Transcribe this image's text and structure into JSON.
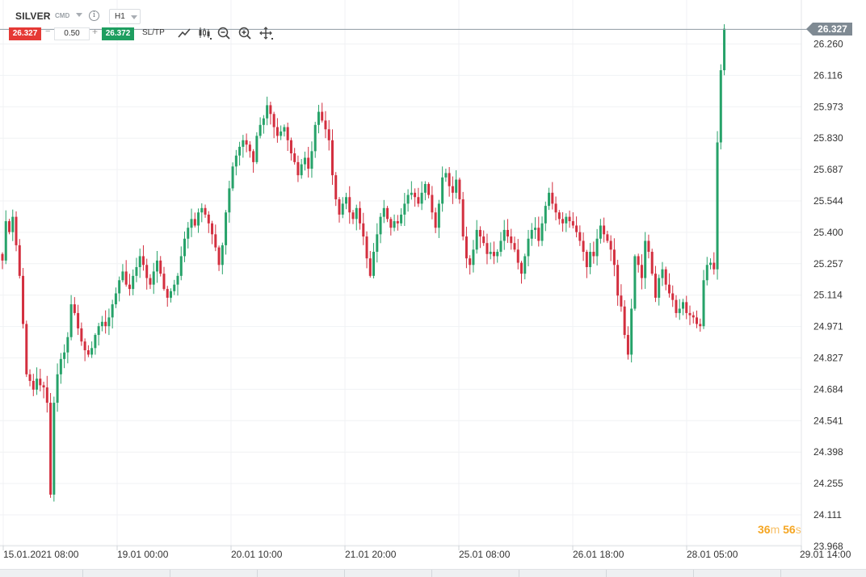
{
  "header": {
    "symbol": "SILVER",
    "market": "CMD",
    "timeframe": "H1"
  },
  "trade_bar": {
    "bid": "26.327",
    "volume": "0.50",
    "ask": "26.372",
    "sltp_label": "SL/TP",
    "minus": "−",
    "plus": "+"
  },
  "toolbar_icons": [
    "trend-line-icon",
    "candlestick-type-icon",
    "zoom-out-icon",
    "zoom-in-icon",
    "move-crosshair-icon"
  ],
  "current_price_label": "26.327",
  "countdown": {
    "minutes": "36",
    "m": "m",
    "seconds": "56",
    "s": "s"
  },
  "colors": {
    "bull": "#26a269",
    "bear": "#d32f3f",
    "bid_bg": "#e53935",
    "ask_bg": "#1e9e60",
    "price_tag_bg": "#7f8a93",
    "countdown": "#f5a623"
  },
  "chart_data": {
    "type": "candlestick",
    "title": "",
    "xlabel": "",
    "ylabel": "",
    "ylim": [
      23.968,
      26.327
    ],
    "grid": true,
    "x_tick_labels": [
      "15.01.2021 08:00",
      "19.01 00:00",
      "20.01 10:00",
      "21.01 20:00",
      "25.01 08:00",
      "26.01 18:00",
      "28.01 05:00",
      "29.01 14:00"
    ],
    "y_tick_labels": [
      "26.260",
      "26.116",
      "25.973",
      "25.830",
      "25.687",
      "25.544",
      "25.400",
      "25.257",
      "25.114",
      "24.971",
      "24.827",
      "24.684",
      "24.541",
      "24.398",
      "24.255",
      "24.111",
      "23.968"
    ],
    "series": [
      {
        "values": [
          25.27,
          25.45,
          25.4,
          25.47,
          25.34,
          25.2,
          24.98,
          24.75,
          24.72,
          24.68,
          24.73,
          24.7,
          24.69,
          24.62,
          24.2,
          24.62,
          24.75,
          24.82,
          24.85,
          24.92,
          25.07,
          25.03,
          24.96,
          24.9,
          24.86,
          24.84,
          24.87,
          24.93,
          24.97,
          24.99,
          24.97,
          25.01,
          25.07,
          25.12,
          25.18,
          25.22,
          25.16,
          25.14,
          25.2,
          25.24,
          25.29,
          25.25,
          25.19,
          25.16,
          25.22,
          25.27,
          25.21,
          25.14,
          25.1,
          25.13,
          25.16,
          25.2,
          25.29,
          25.37,
          25.42,
          25.46,
          25.43,
          25.49,
          25.51,
          25.48,
          25.44,
          25.39,
          25.33,
          25.25,
          25.34,
          25.49,
          25.6,
          25.7,
          25.75,
          25.79,
          25.82,
          25.8,
          25.77,
          25.72,
          25.84,
          25.89,
          25.92,
          25.98,
          25.94,
          25.88,
          25.84,
          25.86,
          25.88,
          25.82,
          25.76,
          25.72,
          25.66,
          25.71,
          25.74,
          25.69,
          25.77,
          25.89,
          25.95,
          25.91,
          25.87,
          25.82,
          25.66,
          25.55,
          25.48,
          25.53,
          25.56,
          25.49,
          25.46,
          25.51,
          25.44,
          25.38,
          25.28,
          25.2,
          25.31,
          25.39,
          25.47,
          25.51,
          25.46,
          25.42,
          25.45,
          25.44,
          25.48,
          25.53,
          25.57,
          25.58,
          25.56,
          25.53,
          25.58,
          25.62,
          25.57,
          25.49,
          25.42,
          25.53,
          25.65,
          25.67,
          25.61,
          25.58,
          25.64,
          25.55,
          25.38,
          25.28,
          25.25,
          25.32,
          25.41,
          25.38,
          25.35,
          25.3,
          25.31,
          25.29,
          25.31,
          25.36,
          25.41,
          25.38,
          25.35,
          25.32,
          25.26,
          25.21,
          25.29,
          25.37,
          25.41,
          25.42,
          25.36,
          25.44,
          25.52,
          25.58,
          25.53,
          25.49,
          25.46,
          25.44,
          25.47,
          25.45,
          25.43,
          25.4,
          25.36,
          25.31,
          25.24,
          25.31,
          25.29,
          25.37,
          25.43,
          25.39,
          25.36,
          25.32,
          25.25,
          25.11,
          25.06,
          24.93,
          24.84,
          25.05,
          25.29,
          25.25,
          25.19,
          25.36,
          25.31,
          25.21,
          25.1,
          25.19,
          25.23,
          25.16,
          25.12,
          25.09,
          25.03,
          25.05,
          25.08,
          25.03,
          25.02,
          25.01,
          24.98,
          24.97,
          25.18,
          25.25,
          25.26,
          25.23,
          25.81,
          26.14,
          26.33
        ]
      }
    ],
    "last_price": 26.327,
    "price_range": [
      23.99,
      26.34
    ]
  }
}
